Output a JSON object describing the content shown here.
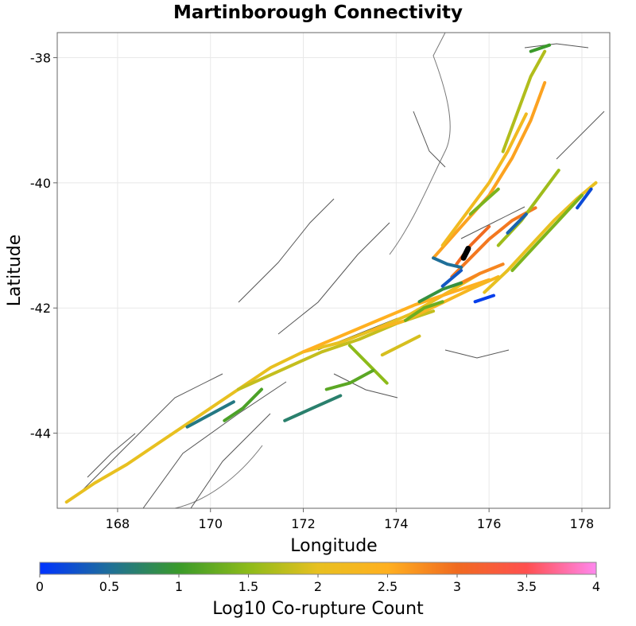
{
  "chart_data": {
    "type": "map",
    "title": "Martinborough Connectivity",
    "xlabel": "Longitude",
    "ylabel": "Latitude",
    "xlim": [
      166.7,
      178.6
    ],
    "ylim": [
      -45.2,
      -37.6
    ],
    "x_ticks": [
      "168",
      "170",
      "172",
      "174",
      "176",
      "178"
    ],
    "y_ticks": [
      "-38",
      "-40",
      "-42",
      "-44"
    ],
    "x_tick_values": [
      168,
      170,
      172,
      174,
      176,
      178
    ],
    "y_tick_values": [
      -38,
      -40,
      -42,
      -44
    ],
    "colorbar": {
      "label": "Log10 Co-rupture Count",
      "min": 0,
      "max": 4,
      "ticks": [
        "0",
        "0.5",
        "1",
        "1.5",
        "2",
        "2.5",
        "3",
        "3.5",
        "4"
      ],
      "tick_values": [
        0,
        0.5,
        1,
        1.5,
        2,
        2.5,
        3,
        3.5,
        4
      ],
      "stops": [
        {
          "v": 0,
          "color": "#0033ff"
        },
        {
          "v": 0.5,
          "color": "#1f6f99"
        },
        {
          "v": 1,
          "color": "#3a9a2a"
        },
        {
          "v": 1.5,
          "color": "#8dbb1a"
        },
        {
          "v": 2,
          "color": "#e8c020"
        },
        {
          "v": 2.5,
          "color": "#ffb020"
        },
        {
          "v": 3,
          "color": "#f06a20"
        },
        {
          "v": 3.5,
          "color": "#ff5050"
        },
        {
          "v": 4,
          "color": "#ff88ee"
        }
      ]
    },
    "target_fault": {
      "name": "Martinborough",
      "lon": [
        175.45,
        175.55
      ],
      "lat": [
        -41.2,
        -41.05
      ],
      "color": "#000000"
    },
    "ruptures": [
      {
        "lon": [
          166.9,
          167.5,
          168.2,
          169.0,
          169.8,
          170.6,
          171.3,
          172.0,
          172.8,
          173.5,
          174.3,
          175.0,
          175.8
        ],
        "lat": [
          -45.1,
          -44.8,
          -44.5,
          -44.1,
          -43.7,
          -43.3,
          -42.95,
          -42.7,
          -42.55,
          -42.35,
          -42.1,
          -41.8,
          -41.45
        ],
        "v": 2.0
      },
      {
        "lon": [
          170.6,
          171.5,
          172.4,
          173.2,
          174.0,
          174.8
        ],
        "lat": [
          -43.3,
          -43.0,
          -42.7,
          -42.5,
          -42.25,
          -42.05
        ],
        "v": 1.8
      },
      {
        "lon": [
          172.0,
          172.8,
          173.6,
          174.4,
          175.2,
          176.0
        ],
        "lat": [
          -42.7,
          -42.45,
          -42.2,
          -41.95,
          -41.75,
          -41.55
        ],
        "v": 2.5
      },
      {
        "lon": [
          173.5,
          174.2,
          174.9,
          175.6,
          176.2
        ],
        "lat": [
          -42.35,
          -42.2,
          -41.95,
          -41.7,
          -41.5
        ],
        "v": 2.3
      },
      {
        "lon": [
          174.8,
          175.4,
          176.0,
          176.5,
          176.9,
          177.2
        ],
        "lat": [
          -41.2,
          -40.7,
          -40.2,
          -39.6,
          -39.0,
          -38.4
        ],
        "v": 2.6
      },
      {
        "lon": [
          175.0,
          175.5,
          176.0,
          176.4,
          176.8
        ],
        "lat": [
          -41.0,
          -40.5,
          -40.0,
          -39.5,
          -38.9
        ],
        "v": 2.2
      },
      {
        "lon": [
          176.3,
          176.6,
          176.9,
          177.2
        ],
        "lat": [
          -39.5,
          -38.9,
          -38.3,
          -37.9
        ],
        "v": 1.7
      },
      {
        "lon": [
          175.9,
          176.4,
          176.9,
          177.4,
          177.9,
          178.3
        ],
        "lat": [
          -41.75,
          -41.4,
          -41.0,
          -40.6,
          -40.25,
          -40.0
        ],
        "v": 2.0
      },
      {
        "lon": [
          176.5,
          177.0,
          177.5,
          178.0
        ],
        "lat": [
          -41.4,
          -41.0,
          -40.6,
          -40.2
        ],
        "v": 1.4
      },
      {
        "lon": [
          175.2,
          175.6,
          176.0,
          176.5,
          177.0
        ],
        "lat": [
          -41.5,
          -41.2,
          -40.9,
          -40.6,
          -40.4
        ],
        "v": 2.9
      },
      {
        "lon": [
          175.3,
          175.6,
          176.0
        ],
        "lat": [
          -41.3,
          -41.0,
          -40.7
        ],
        "v": 3.0
      },
      {
        "lon": [
          175.4,
          175.8,
          176.3
        ],
        "lat": [
          -41.6,
          -41.45,
          -41.3
        ],
        "v": 2.8
      },
      {
        "lon": [
          176.2,
          176.7,
          177.1,
          177.5
        ],
        "lat": [
          -41.0,
          -40.6,
          -40.2,
          -39.8
        ],
        "v": 1.6
      },
      {
        "lon": [
          173.0,
          173.4,
          173.8
        ],
        "lat": [
          -42.6,
          -42.9,
          -43.2
        ],
        "v": 1.5
      },
      {
        "lon": [
          172.5,
          173.0,
          173.5
        ],
        "lat": [
          -43.3,
          -43.2,
          -43.0
        ],
        "v": 1.2
      },
      {
        "lon": [
          171.6,
          172.2,
          172.8
        ],
        "lat": [
          -43.8,
          -43.6,
          -43.4
        ],
        "v": 0.7
      },
      {
        "lon": [
          170.3,
          170.7,
          171.1
        ],
        "lat": [
          -43.8,
          -43.6,
          -43.3
        ],
        "v": 1.1
      },
      {
        "lon": [
          169.5,
          170.0,
          170.5
        ],
        "lat": [
          -43.9,
          -43.7,
          -43.5
        ],
        "v": 0.6
      },
      {
        "lon": [
          174.2,
          174.6,
          175.0
        ],
        "lat": [
          -42.2,
          -42.0,
          -41.9
        ],
        "v": 1.3
      },
      {
        "lon": [
          174.5,
          175.0,
          175.4
        ],
        "lat": [
          -41.9,
          -41.7,
          -41.6
        ],
        "v": 0.9
      },
      {
        "lon": [
          175.0,
          175.4
        ],
        "lat": [
          -41.65,
          -41.4
        ],
        "v": 0.3
      },
      {
        "lon": [
          176.9,
          177.3
        ],
        "lat": [
          -37.9,
          -37.8
        ],
        "v": 1.0
      },
      {
        "lon": [
          175.7,
          176.1
        ],
        "lat": [
          -41.9,
          -41.8
        ],
        "v": 0.1
      },
      {
        "lon": [
          176.4,
          176.8
        ],
        "lat": [
          -40.8,
          -40.5
        ],
        "v": 0.4
      },
      {
        "lon": [
          177.9,
          178.2
        ],
        "lat": [
          -40.4,
          -40.1
        ],
        "v": 0.2
      },
      {
        "lon": [
          173.7,
          174.1,
          174.5
        ],
        "lat": [
          -42.75,
          -42.6,
          -42.45
        ],
        "v": 1.9
      },
      {
        "lon": [
          175.6,
          175.9,
          176.2
        ],
        "lat": [
          -40.5,
          -40.3,
          -40.1
        ],
        "v": 1.4
      },
      {
        "lon": [
          174.8,
          175.1,
          175.4
        ],
        "lat": [
          -41.2,
          -41.3,
          -41.35
        ],
        "v": 0.5
      }
    ]
  }
}
